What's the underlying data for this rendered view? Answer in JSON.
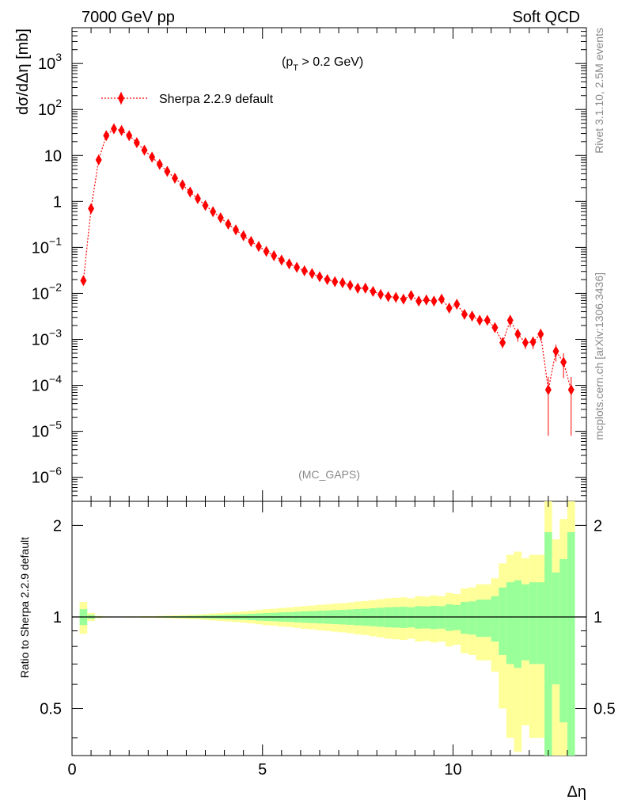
{
  "header": {
    "left": "7000 GeV pp",
    "right": "Soft QCD",
    "cut_prefix": "(p",
    "cut_sub": "T",
    "cut_suffix": " > 0.2 GeV)",
    "analysis_tag": "(MC_GAPS)",
    "side_top": "Rivet 3.1.10,  2.5M events",
    "side_bottom": "mcplots.cern.ch [arXiv:1306.3436]"
  },
  "chart_data": [
    {
      "type": "line",
      "scale": "log",
      "ylabel": "dσ/dΔη [mb]",
      "xlim": [
        0,
        13.5
      ],
      "ylim": [
        3e-07,
        6000
      ],
      "y_tick_labels": [
        "10^-6",
        "10^-5",
        "10^-4",
        "10^-3",
        "10^-2",
        "10^-1",
        "1",
        "10",
        "10^2",
        "10^3"
      ],
      "legend": {
        "placement": "top-left",
        "entries": [
          "Sherpa 2.2.9 default"
        ]
      },
      "series": [
        {
          "name": "Sherpa 2.2.9 default",
          "color": "#ff0000",
          "x": [
            0.3,
            0.5,
            0.7,
            0.9,
            1.1,
            1.3,
            1.5,
            1.7,
            1.9,
            2.1,
            2.3,
            2.5,
            2.7,
            2.9,
            3.1,
            3.3,
            3.5,
            3.7,
            3.9,
            4.1,
            4.3,
            4.5,
            4.7,
            4.9,
            5.1,
            5.3,
            5.5,
            5.7,
            5.9,
            6.1,
            6.3,
            6.5,
            6.7,
            6.9,
            7.1,
            7.3,
            7.5,
            7.7,
            7.9,
            8.1,
            8.3,
            8.5,
            8.7,
            8.9,
            9.1,
            9.3,
            9.5,
            9.7,
            9.9,
            10.1,
            10.3,
            10.5,
            10.7,
            10.9,
            11.1,
            11.3,
            11.5,
            11.7,
            11.9,
            12.1,
            12.3,
            12.5,
            12.7,
            12.9,
            13.1
          ],
          "y": [
            0.019,
            0.7,
            8,
            27,
            38,
            35,
            27,
            19,
            13,
            9.2,
            6.4,
            4.5,
            3.2,
            2.3,
            1.6,
            1.15,
            0.82,
            0.6,
            0.44,
            0.32,
            0.24,
            0.18,
            0.135,
            0.105,
            0.082,
            0.066,
            0.053,
            0.044,
            0.037,
            0.031,
            0.027,
            0.023,
            0.02,
            0.018,
            0.017,
            0.015,
            0.013,
            0.013,
            0.011,
            0.0095,
            0.0085,
            0.0082,
            0.0075,
            0.009,
            0.0068,
            0.0072,
            0.0068,
            0.0075,
            0.0048,
            0.0058,
            0.0035,
            0.0032,
            0.0026,
            0.0026,
            0.0018,
            0.00085,
            0.0026,
            0.0013,
            0.00085,
            0.00088,
            0.0013,
            8e-05,
            0.00055,
            0.00032,
            8e-05
          ]
        }
      ]
    },
    {
      "type": "area",
      "scale": "log",
      "ylabel": "Ratio to Sherpa 2.2.9 default",
      "xlabel": "Δη",
      "xlim": [
        0,
        13.5
      ],
      "ylim": [
        0.35,
        2.4
      ],
      "x_ticks": [
        0,
        5,
        10
      ],
      "y_ticks": [
        0.5,
        1,
        2
      ],
      "bands": {
        "edges": [
          0.2,
          0.4,
          0.6,
          0.8,
          1.0,
          1.2,
          1.4,
          1.6,
          1.8,
          2.0,
          2.2,
          2.4,
          2.6,
          2.8,
          3.0,
          3.2,
          3.4,
          3.6,
          3.8,
          4.0,
          4.2,
          4.4,
          4.6,
          4.8,
          5.0,
          5.2,
          5.4,
          5.6,
          5.8,
          6.0,
          6.2,
          6.4,
          6.6,
          6.8,
          7.0,
          7.2,
          7.4,
          7.6,
          7.8,
          8.0,
          8.2,
          8.4,
          8.6,
          8.8,
          9.0,
          9.2,
          9.4,
          9.6,
          9.8,
          10.0,
          10.2,
          10.4,
          10.6,
          10.8,
          11.0,
          11.2,
          11.4,
          11.6,
          11.8,
          12.0,
          12.2,
          12.4,
          12.6,
          12.8,
          13.0,
          13.2
        ],
        "inner_rel": [
          0.06,
          0.015,
          0.004,
          0.002,
          0.0015,
          0.0015,
          0.002,
          0.002,
          0.003,
          0.003,
          0.004,
          0.005,
          0.006,
          0.007,
          0.008,
          0.009,
          0.011,
          0.013,
          0.015,
          0.017,
          0.019,
          0.021,
          0.024,
          0.027,
          0.03,
          0.032,
          0.035,
          0.037,
          0.04,
          0.043,
          0.045,
          0.048,
          0.05,
          0.053,
          0.055,
          0.058,
          0.062,
          0.064,
          0.068,
          0.072,
          0.076,
          0.078,
          0.08,
          0.076,
          0.085,
          0.083,
          0.088,
          0.085,
          0.1,
          0.095,
          0.12,
          0.125,
          0.14,
          0.14,
          0.17,
          0.25,
          0.3,
          0.32,
          0.28,
          0.3,
          0.3,
          0.9,
          0.4,
          0.55,
          0.9
        ],
        "outer_rel": [
          0.12,
          0.03,
          0.008,
          0.004,
          0.003,
          0.003,
          0.004,
          0.004,
          0.006,
          0.006,
          0.008,
          0.01,
          0.012,
          0.014,
          0.016,
          0.018,
          0.022,
          0.026,
          0.03,
          0.034,
          0.038,
          0.042,
          0.048,
          0.054,
          0.06,
          0.064,
          0.07,
          0.074,
          0.08,
          0.086,
          0.09,
          0.096,
          0.1,
          0.106,
          0.11,
          0.116,
          0.124,
          0.128,
          0.136,
          0.144,
          0.152,
          0.156,
          0.16,
          0.152,
          0.17,
          0.166,
          0.176,
          0.17,
          0.2,
          0.19,
          0.24,
          0.25,
          0.28,
          0.28,
          0.34,
          0.5,
          0.6,
          0.64,
          0.56,
          0.6,
          0.6,
          1.8,
          0.8,
          1.1,
          1.8
        ],
        "inner_color": "#99ff99",
        "outer_color": "#ffff99"
      },
      "reference_line": 1
    }
  ]
}
